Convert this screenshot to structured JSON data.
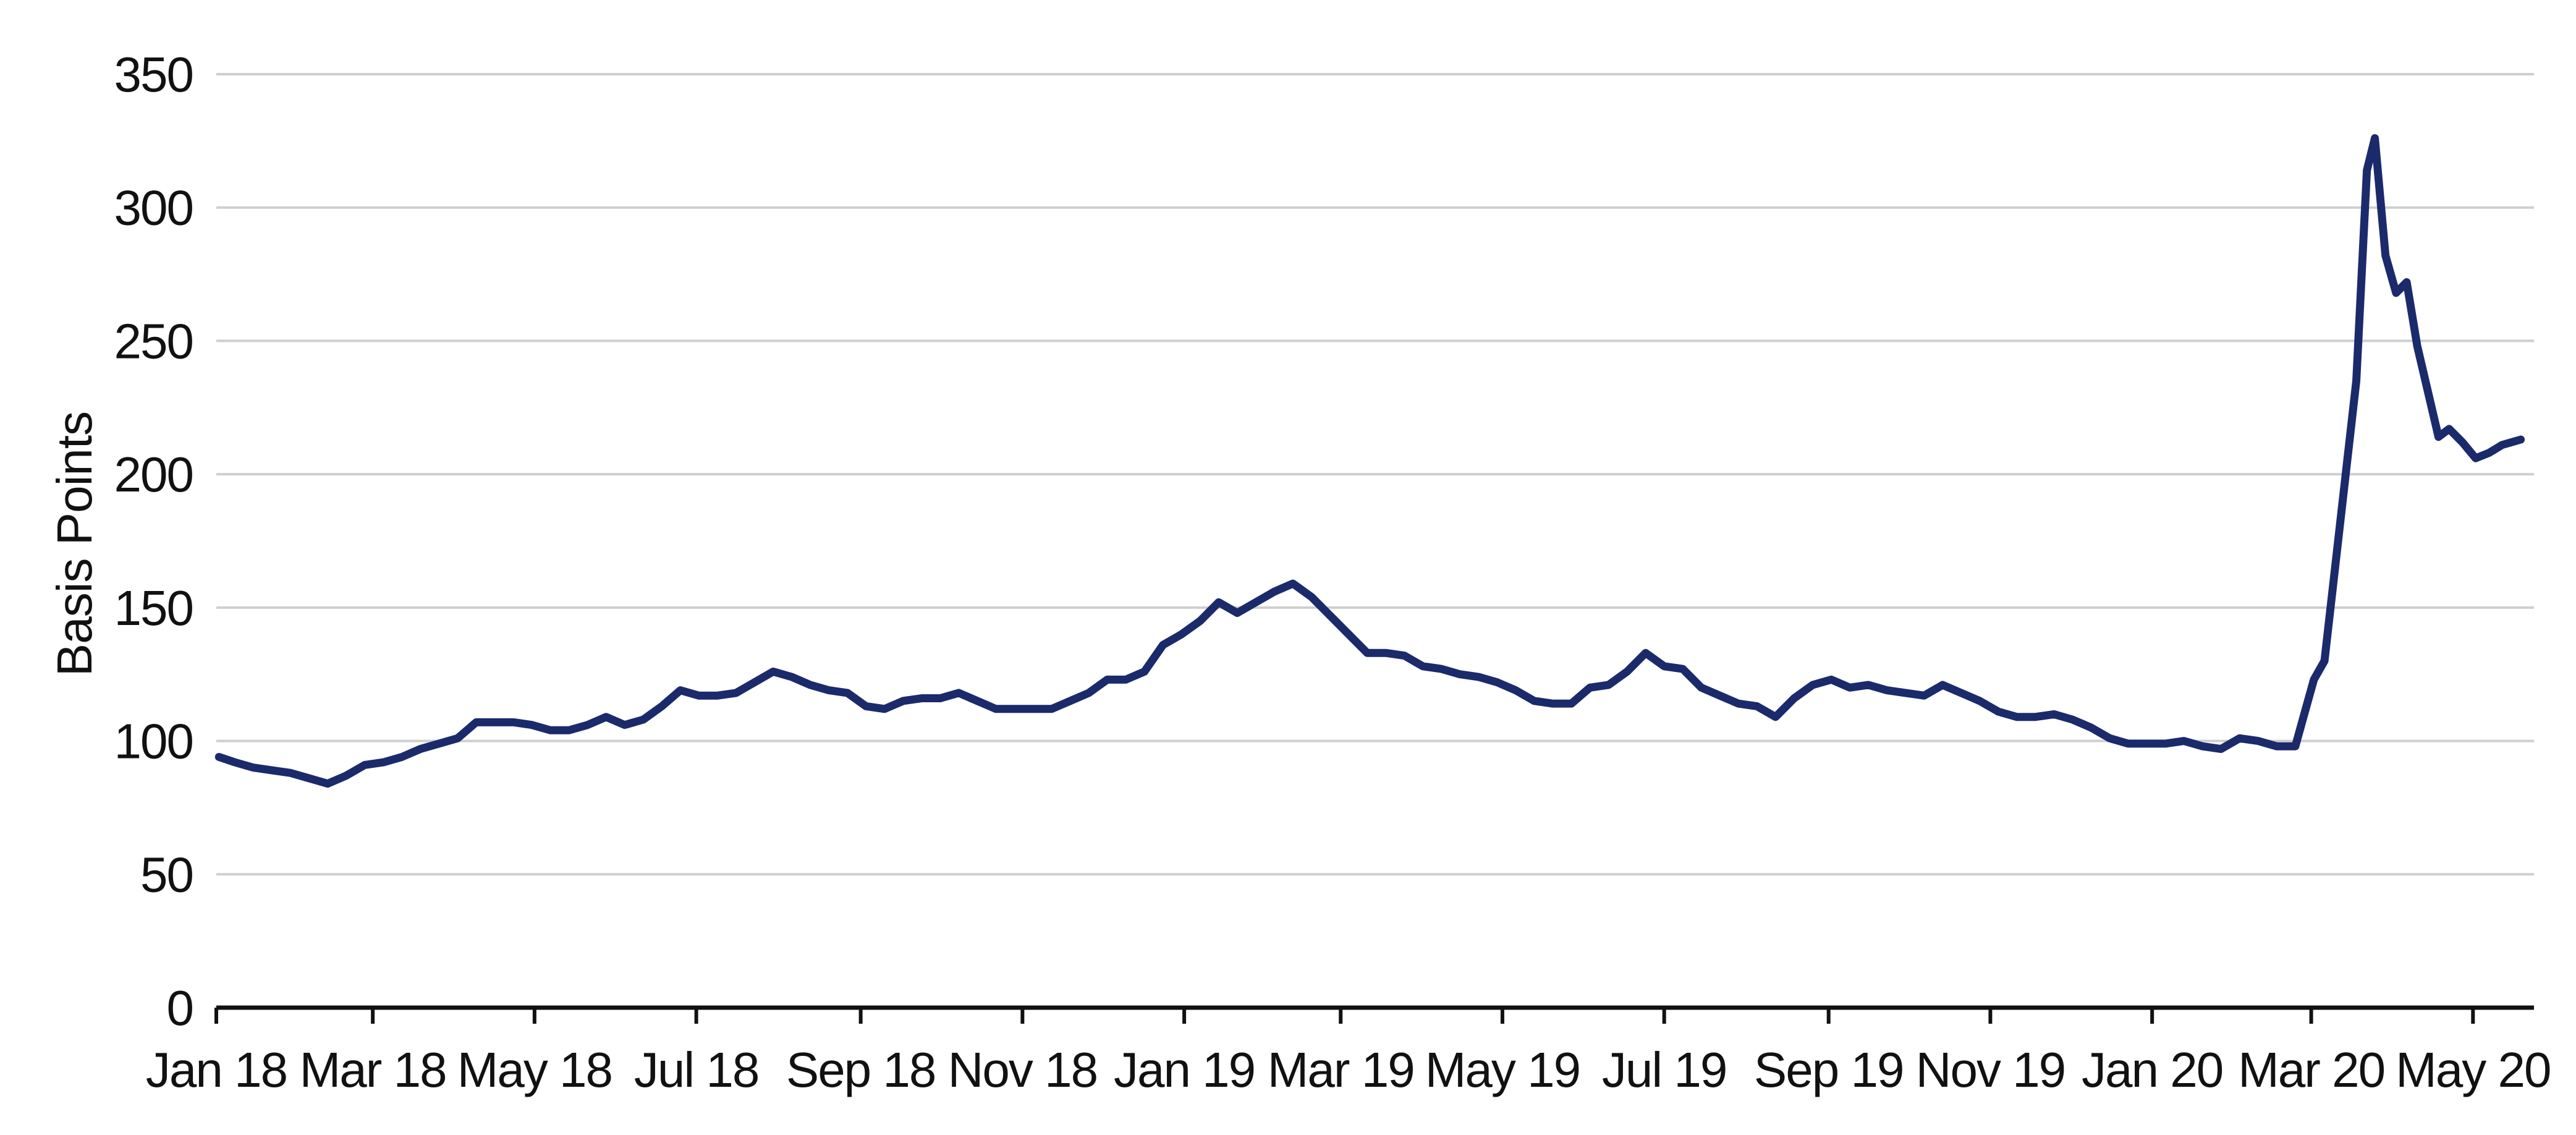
{
  "chart_data": {
    "type": "line",
    "title": "",
    "xlabel": "",
    "ylabel": "Basis Points",
    "ylim": [
      0,
      350
    ],
    "yticks": [
      "0",
      "50",
      "100",
      "150",
      "200",
      "250",
      "300",
      "350"
    ],
    "xticks": [
      "Jan 18",
      "Mar 18",
      "May 18",
      "Jul 18",
      "Sep 18",
      "Nov 18",
      "Jan 19",
      "Mar 19",
      "May 19",
      "Jul 19",
      "Sep 19",
      "Nov 19",
      "Jan 20",
      "Mar 20",
      "May 20"
    ],
    "grid": true,
    "legend": "none",
    "series": [
      {
        "color": "#1b2a6b",
        "points": [
          [
            "2018-01-02",
            94
          ],
          [
            "2018-01-08",
            92
          ],
          [
            "2018-01-15",
            90
          ],
          [
            "2018-01-22",
            89
          ],
          [
            "2018-01-29",
            88
          ],
          [
            "2018-02-05",
            86
          ],
          [
            "2018-02-12",
            84
          ],
          [
            "2018-02-19",
            87
          ],
          [
            "2018-02-26",
            91
          ],
          [
            "2018-03-05",
            92
          ],
          [
            "2018-03-12",
            94
          ],
          [
            "2018-03-19",
            97
          ],
          [
            "2018-03-26",
            99
          ],
          [
            "2018-04-02",
            101
          ],
          [
            "2018-04-09",
            107
          ],
          [
            "2018-04-16",
            107
          ],
          [
            "2018-04-23",
            107
          ],
          [
            "2018-04-30",
            106
          ],
          [
            "2018-05-07",
            104
          ],
          [
            "2018-05-14",
            104
          ],
          [
            "2018-05-21",
            106
          ],
          [
            "2018-05-28",
            109
          ],
          [
            "2018-06-04",
            106
          ],
          [
            "2018-06-11",
            108
          ],
          [
            "2018-06-18",
            113
          ],
          [
            "2018-06-25",
            119
          ],
          [
            "2018-07-02",
            117
          ],
          [
            "2018-07-09",
            117
          ],
          [
            "2018-07-16",
            118
          ],
          [
            "2018-07-23",
            122
          ],
          [
            "2018-07-30",
            126
          ],
          [
            "2018-08-06",
            124
          ],
          [
            "2018-08-13",
            121
          ],
          [
            "2018-08-20",
            119
          ],
          [
            "2018-08-27",
            118
          ],
          [
            "2018-09-03",
            113
          ],
          [
            "2018-09-10",
            112
          ],
          [
            "2018-09-17",
            115
          ],
          [
            "2018-09-24",
            116
          ],
          [
            "2018-10-01",
            116
          ],
          [
            "2018-10-08",
            118
          ],
          [
            "2018-10-15",
            115
          ],
          [
            "2018-10-22",
            112
          ],
          [
            "2018-10-29",
            112
          ],
          [
            "2018-11-05",
            112
          ],
          [
            "2018-11-12",
            112
          ],
          [
            "2018-11-19",
            115
          ],
          [
            "2018-11-26",
            118
          ],
          [
            "2018-12-03",
            123
          ],
          [
            "2018-12-10",
            123
          ],
          [
            "2018-12-17",
            126
          ],
          [
            "2018-12-24",
            136
          ],
          [
            "2018-12-31",
            140
          ],
          [
            "2019-01-07",
            145
          ],
          [
            "2019-01-14",
            152
          ],
          [
            "2019-01-21",
            148
          ],
          [
            "2019-01-28",
            152
          ],
          [
            "2019-02-04",
            156
          ],
          [
            "2019-02-11",
            159
          ],
          [
            "2019-02-18",
            154
          ],
          [
            "2019-02-25",
            147
          ],
          [
            "2019-03-04",
            140
          ],
          [
            "2019-03-11",
            133
          ],
          [
            "2019-03-18",
            133
          ],
          [
            "2019-03-25",
            132
          ],
          [
            "2019-04-01",
            128
          ],
          [
            "2019-04-08",
            127
          ],
          [
            "2019-04-15",
            125
          ],
          [
            "2019-04-22",
            124
          ],
          [
            "2019-04-29",
            122
          ],
          [
            "2019-05-06",
            119
          ],
          [
            "2019-05-13",
            115
          ],
          [
            "2019-05-20",
            114
          ],
          [
            "2019-05-27",
            114
          ],
          [
            "2019-06-03",
            120
          ],
          [
            "2019-06-10",
            121
          ],
          [
            "2019-06-17",
            126
          ],
          [
            "2019-06-24",
            133
          ],
          [
            "2019-07-01",
            128
          ],
          [
            "2019-07-08",
            127
          ],
          [
            "2019-07-15",
            120
          ],
          [
            "2019-07-22",
            117
          ],
          [
            "2019-07-29",
            114
          ],
          [
            "2019-08-05",
            113
          ],
          [
            "2019-08-12",
            109
          ],
          [
            "2019-08-19",
            116
          ],
          [
            "2019-08-26",
            121
          ],
          [
            "2019-09-02",
            123
          ],
          [
            "2019-09-09",
            120
          ],
          [
            "2019-09-16",
            121
          ],
          [
            "2019-09-23",
            119
          ],
          [
            "2019-09-30",
            118
          ],
          [
            "2019-10-07",
            117
          ],
          [
            "2019-10-14",
            121
          ],
          [
            "2019-10-21",
            118
          ],
          [
            "2019-10-28",
            115
          ],
          [
            "2019-11-04",
            111
          ],
          [
            "2019-11-11",
            109
          ],
          [
            "2019-11-18",
            109
          ],
          [
            "2019-11-25",
            110
          ],
          [
            "2019-12-02",
            108
          ],
          [
            "2019-12-09",
            105
          ],
          [
            "2019-12-16",
            101
          ],
          [
            "2019-12-23",
            99
          ],
          [
            "2019-12-30",
            99
          ],
          [
            "2020-01-06",
            99
          ],
          [
            "2020-01-13",
            100
          ],
          [
            "2020-01-20",
            98
          ],
          [
            "2020-01-27",
            97
          ],
          [
            "2020-02-03",
            101
          ],
          [
            "2020-02-10",
            100
          ],
          [
            "2020-02-17",
            98
          ],
          [
            "2020-02-24",
            98
          ],
          [
            "2020-03-02",
            123
          ],
          [
            "2020-03-06",
            130
          ],
          [
            "2020-03-10",
            165
          ],
          [
            "2020-03-14",
            200
          ],
          [
            "2020-03-18",
            235
          ],
          [
            "2020-03-22",
            314
          ],
          [
            "2020-03-25",
            326
          ],
          [
            "2020-03-29",
            282
          ],
          [
            "2020-04-02",
            268
          ],
          [
            "2020-04-06",
            272
          ],
          [
            "2020-04-10",
            248
          ],
          [
            "2020-04-14",
            231
          ],
          [
            "2020-04-18",
            214
          ],
          [
            "2020-04-22",
            217
          ],
          [
            "2020-04-27",
            212
          ],
          [
            "2020-05-02",
            206
          ],
          [
            "2020-05-07",
            208
          ],
          [
            "2020-05-12",
            211
          ],
          [
            "2020-05-19",
            213
          ]
        ]
      }
    ]
  }
}
